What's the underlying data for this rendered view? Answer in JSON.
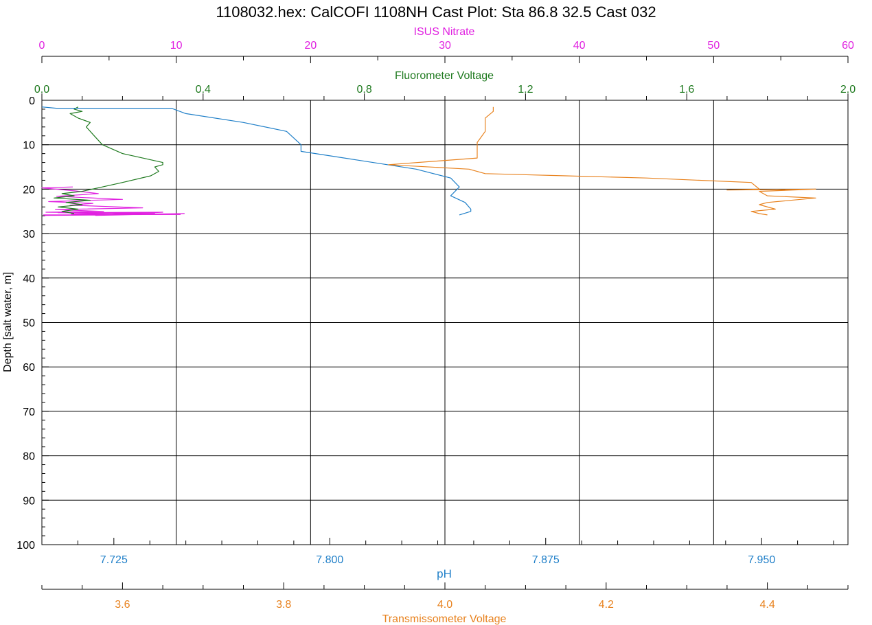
{
  "title": "1108032.hex: CalCOFI 1108NH Cast Plot: Sta 86.8 32.5 Cast 032",
  "colors": {
    "nitrate": "#e020e0",
    "fluorometer": "#1f7a1f",
    "ph": "#1f7fc8",
    "transmissometer": "#e8821e",
    "axis": "#000000",
    "grid": "#000000"
  },
  "chart_data": {
    "type": "line",
    "grid": true,
    "y_axis": {
      "label": "Depth [salt water, m]",
      "range": [
        0,
        100
      ],
      "inverted": true,
      "major_ticks": [
        0,
        10,
        20,
        30,
        40,
        50,
        60,
        70,
        80,
        90,
        100
      ],
      "tick_labels": [
        "0",
        "10",
        "20",
        "30",
        "40",
        "50",
        "60",
        "70",
        "80",
        "90",
        "100"
      ]
    },
    "x_axes": [
      {
        "id": "nitrate",
        "label": "ISUS Nitrate",
        "position": "top-outer",
        "range": [
          0,
          60
        ],
        "ticks": [
          0,
          10,
          20,
          30,
          40,
          50,
          60
        ],
        "tick_labels": [
          "0",
          "10",
          "20",
          "30",
          "40",
          "50",
          "60"
        ],
        "color": "#e020e0"
      },
      {
        "id": "fluorometer",
        "label": "Fluorometer Voltage",
        "position": "top-inner",
        "range": [
          0,
          2
        ],
        "ticks": [
          0,
          0.4,
          0.8,
          1.2,
          1.6,
          2.0
        ],
        "tick_labels": [
          "0.0",
          "0.4",
          "0.8",
          "1.2",
          "1.6",
          "2.0"
        ],
        "color": "#1f7a1f"
      },
      {
        "id": "ph",
        "label": "pH",
        "position": "bottom-inner",
        "range": [
          7.7,
          7.98
        ],
        "ticks": [
          7.725,
          7.8,
          7.875,
          7.95
        ],
        "tick_labels": [
          "7.725",
          "7.800",
          "7.875",
          "7.950"
        ],
        "color": "#1f7fc8"
      },
      {
        "id": "transmissometer",
        "label": "Transmissometer Voltage",
        "position": "bottom-outer",
        "range": [
          3.5,
          4.5
        ],
        "ticks": [
          3.6,
          3.8,
          4.0,
          4.2,
          4.4
        ],
        "tick_labels": [
          "3.6",
          "3.8",
          "4.0",
          "4.2",
          "4.4"
        ],
        "color": "#e8821e"
      }
    ],
    "series": [
      {
        "name": "ISUS Nitrate",
        "axis": "nitrate",
        "x": [
          2.3,
          0,
          2.5,
          4.2,
          1.1,
          6.0,
          0.5,
          3.8,
          2.1,
          7.5,
          1.0,
          4.6,
          0.3,
          8.4,
          2.2,
          5.5,
          0.2,
          10.6,
          4.0,
          9.0,
          1.2,
          10.3,
          0.1
        ],
        "y": [
          19.5,
          19.7,
          20.4,
          21.0,
          21.6,
          22.3,
          22.8,
          23.2,
          23.6,
          24.2,
          24.6,
          25.0,
          25.2,
          25.4,
          25.6,
          25.8,
          25.9,
          25.5,
          25.9,
          25.2,
          25.3,
          25.7,
          25.8
        ]
      },
      {
        "name": "Fluorometer Voltage",
        "axis": "fluorometer",
        "x": [
          0.09,
          0.08,
          0.1,
          0.07,
          0.09,
          0.12,
          0.11,
          0.13,
          0.15,
          0.2,
          0.25,
          0.3,
          0.3,
          0.28,
          0.29,
          0.27,
          0.2,
          0.15,
          0.1,
          0.05,
          0.08,
          0.03,
          0.12,
          0.06,
          0.1,
          0.04,
          0.09,
          0.05,
          0.08
        ],
        "y": [
          1.5,
          2.0,
          2.5,
          3.0,
          4.0,
          5.0,
          6.0,
          8.0,
          10.0,
          12.0,
          13.0,
          14.0,
          14.5,
          15.0,
          16.0,
          17.0,
          18.5,
          19.5,
          20.5,
          21.0,
          21.5,
          22.0,
          22.5,
          23.0,
          23.5,
          24.0,
          24.5,
          25.0,
          25.5
        ]
      },
      {
        "name": "pH",
        "axis": "ph",
        "x": [
          7.7,
          7.705,
          7.745,
          7.75,
          7.77,
          7.785,
          7.79,
          7.79,
          7.81,
          7.83,
          7.842,
          7.845,
          7.842,
          7.847,
          7.849,
          7.849,
          7.845
        ],
        "y": [
          1.5,
          1.8,
          1.8,
          3.0,
          5.0,
          7.0,
          10.0,
          11.5,
          13.5,
          15.5,
          17.5,
          19.5,
          21.5,
          23.0,
          24.5,
          25.0,
          25.8
        ]
      },
      {
        "name": "Transmissometer Voltage",
        "axis": "transmissometer",
        "x": [
          4.06,
          4.06,
          4.05,
          4.05,
          4.04,
          4.04,
          3.93,
          4.03,
          4.05,
          4.15,
          4.25,
          4.38,
          4.39,
          4.35,
          4.46,
          4.39,
          4.4,
          4.46,
          4.4,
          4.39,
          4.41,
          4.38,
          4.39,
          4.4
        ],
        "y": [
          1.5,
          2.5,
          4.0,
          7.0,
          9.5,
          13.0,
          14.5,
          15.5,
          16.5,
          17.0,
          17.5,
          18.5,
          20.0,
          20.2,
          20.0,
          20.5,
          21.5,
          22.0,
          23.0,
          23.5,
          24.5,
          25.0,
          25.5,
          25.8
        ]
      }
    ]
  }
}
